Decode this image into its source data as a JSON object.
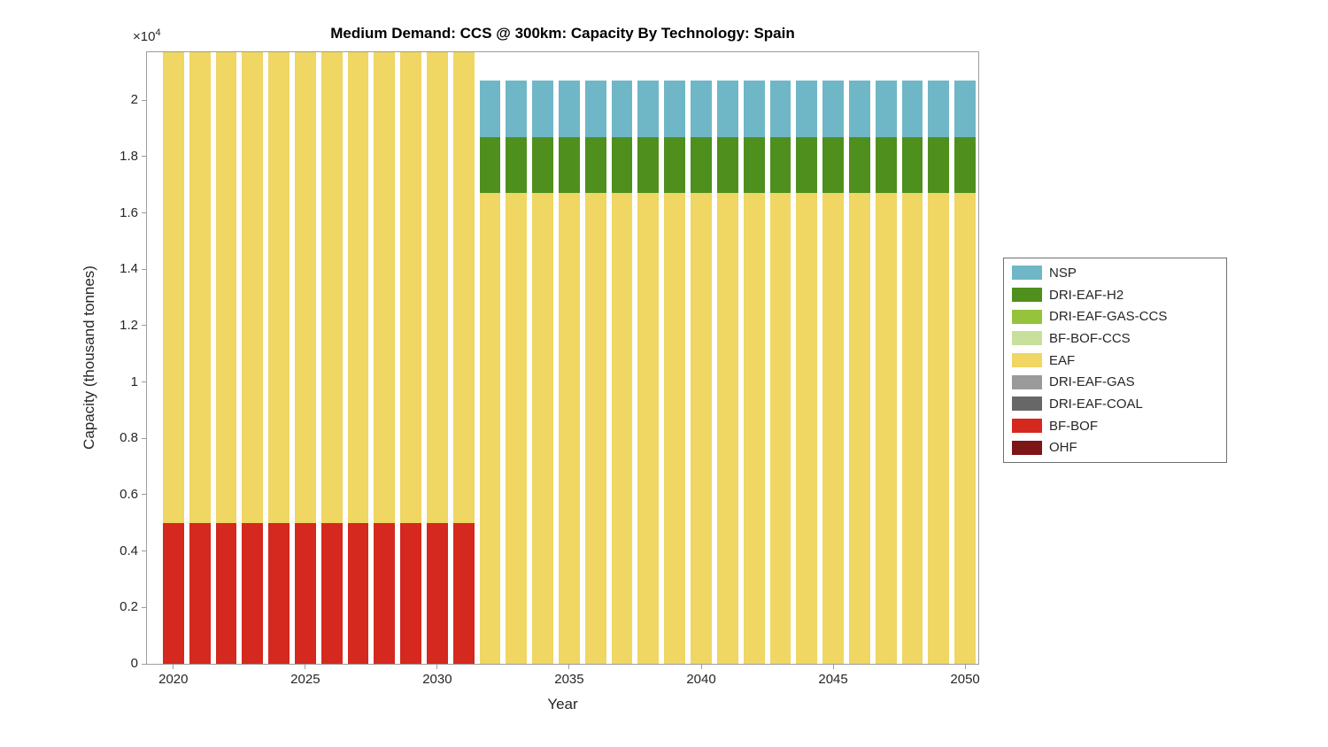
{
  "figure": {
    "title": "Medium Demand: CCS @ 300km: Capacity By Technology: Spain",
    "xlabel": "Year",
    "ylabel": "Capacity (thousand tonnes)",
    "y_exponent_base": "×10",
    "y_exponent_power": "4"
  },
  "legend": {
    "items": [
      {
        "label": "NSP",
        "color": "#6fb7c6"
      },
      {
        "label": "DRI-EAF-H2",
        "color": "#4f8f1e"
      },
      {
        "label": "DRI-EAF-GAS-CCS",
        "color": "#96c33c"
      },
      {
        "label": "BF-BOF-CCS",
        "color": "#c8e09b"
      },
      {
        "label": "EAF",
        "color": "#f0d662"
      },
      {
        "label": "DRI-EAF-GAS",
        "color": "#9a9a9a"
      },
      {
        "label": "DRI-EAF-COAL",
        "color": "#676767"
      },
      {
        "label": "BF-BOF",
        "color": "#d5281e"
      },
      {
        "label": "OHF",
        "color": "#7d1416"
      }
    ]
  },
  "chart_data": {
    "type": "bar",
    "stacked": true,
    "title": "Medium Demand: CCS @ 300km: Capacity By Technology: Spain",
    "xlabel": "Year",
    "ylabel": "Capacity (thousand tonnes)",
    "y_unit_multiplier": 10000,
    "xlim": [
      2019,
      2050.5
    ],
    "ylim": [
      0,
      21700
    ],
    "bar_width_fraction": 0.8,
    "x": [
      2020,
      2021,
      2022,
      2023,
      2024,
      2025,
      2026,
      2027,
      2028,
      2029,
      2030,
      2031,
      2032,
      2033,
      2034,
      2035,
      2036,
      2037,
      2038,
      2039,
      2040,
      2041,
      2042,
      2043,
      2044,
      2045,
      2046,
      2047,
      2048,
      2049,
      2050
    ],
    "series": [
      {
        "name": "OHF",
        "color": "#7d1416",
        "values": [
          0,
          0,
          0,
          0,
          0,
          0,
          0,
          0,
          0,
          0,
          0,
          0,
          0,
          0,
          0,
          0,
          0,
          0,
          0,
          0,
          0,
          0,
          0,
          0,
          0,
          0,
          0,
          0,
          0,
          0,
          0
        ]
      },
      {
        "name": "BF-BOF",
        "color": "#d5281e",
        "values": [
          5000,
          5000,
          5000,
          5000,
          5000,
          5000,
          5000,
          5000,
          5000,
          5000,
          5000,
          5000,
          0,
          0,
          0,
          0,
          0,
          0,
          0,
          0,
          0,
          0,
          0,
          0,
          0,
          0,
          0,
          0,
          0,
          0,
          0
        ]
      },
      {
        "name": "DRI-EAF-COAL",
        "color": "#676767",
        "values": [
          0,
          0,
          0,
          0,
          0,
          0,
          0,
          0,
          0,
          0,
          0,
          0,
          0,
          0,
          0,
          0,
          0,
          0,
          0,
          0,
          0,
          0,
          0,
          0,
          0,
          0,
          0,
          0,
          0,
          0,
          0
        ]
      },
      {
        "name": "DRI-EAF-GAS",
        "color": "#9a9a9a",
        "values": [
          0,
          0,
          0,
          0,
          0,
          0,
          0,
          0,
          0,
          0,
          0,
          0,
          0,
          0,
          0,
          0,
          0,
          0,
          0,
          0,
          0,
          0,
          0,
          0,
          0,
          0,
          0,
          0,
          0,
          0,
          0
        ]
      },
      {
        "name": "EAF",
        "color": "#f0d662",
        "values": [
          16700,
          16700,
          16700,
          16700,
          16700,
          16700,
          16700,
          16700,
          16700,
          16700,
          16700,
          16700,
          16700,
          16700,
          16700,
          16700,
          16700,
          16700,
          16700,
          16700,
          16700,
          16700,
          16700,
          16700,
          16700,
          16700,
          16700,
          16700,
          16700,
          16700,
          16700
        ]
      },
      {
        "name": "BF-BOF-CCS",
        "color": "#c8e09b",
        "values": [
          0,
          0,
          0,
          0,
          0,
          0,
          0,
          0,
          0,
          0,
          0,
          0,
          0,
          0,
          0,
          0,
          0,
          0,
          0,
          0,
          0,
          0,
          0,
          0,
          0,
          0,
          0,
          0,
          0,
          0,
          0
        ]
      },
      {
        "name": "DRI-EAF-GAS-CCS",
        "color": "#96c33c",
        "values": [
          0,
          0,
          0,
          0,
          0,
          0,
          0,
          0,
          0,
          0,
          0,
          0,
          0,
          0,
          0,
          0,
          0,
          0,
          0,
          0,
          0,
          0,
          0,
          0,
          0,
          0,
          0,
          0,
          0,
          0,
          0
        ]
      },
      {
        "name": "DRI-EAF-H2",
        "color": "#4f8f1e",
        "values": [
          0,
          0,
          0,
          0,
          0,
          0,
          0,
          0,
          0,
          0,
          0,
          0,
          2000,
          2000,
          2000,
          2000,
          2000,
          2000,
          2000,
          2000,
          2000,
          2000,
          2000,
          2000,
          2000,
          2000,
          2000,
          2000,
          2000,
          2000,
          2000
        ]
      },
      {
        "name": "NSP",
        "color": "#6fb7c6",
        "values": [
          0,
          0,
          0,
          0,
          0,
          0,
          0,
          0,
          0,
          0,
          0,
          0,
          2000,
          2000,
          2000,
          2000,
          2000,
          2000,
          2000,
          2000,
          2000,
          2000,
          2000,
          2000,
          2000,
          2000,
          2000,
          2000,
          2000,
          2000,
          2000
        ]
      }
    ],
    "yticks": [
      {
        "value": 0,
        "label": "0"
      },
      {
        "value": 2000,
        "label": "0.2"
      },
      {
        "value": 4000,
        "label": "0.4"
      },
      {
        "value": 6000,
        "label": "0.6"
      },
      {
        "value": 8000,
        "label": "0.8"
      },
      {
        "value": 10000,
        "label": "1"
      },
      {
        "value": 12000,
        "label": "1.2"
      },
      {
        "value": 14000,
        "label": "1.4"
      },
      {
        "value": 16000,
        "label": "1.6"
      },
      {
        "value": 18000,
        "label": "1.8"
      },
      {
        "value": 20000,
        "label": "2"
      }
    ],
    "xticks": [
      {
        "value": 2020,
        "label": "2020"
      },
      {
        "value": 2025,
        "label": "2025"
      },
      {
        "value": 2030,
        "label": "2030"
      },
      {
        "value": 2035,
        "label": "2035"
      },
      {
        "value": 2040,
        "label": "2040"
      },
      {
        "value": 2045,
        "label": "2045"
      },
      {
        "value": 2050,
        "label": "2050"
      }
    ],
    "legend_position": "right-outside",
    "grid": false
  }
}
